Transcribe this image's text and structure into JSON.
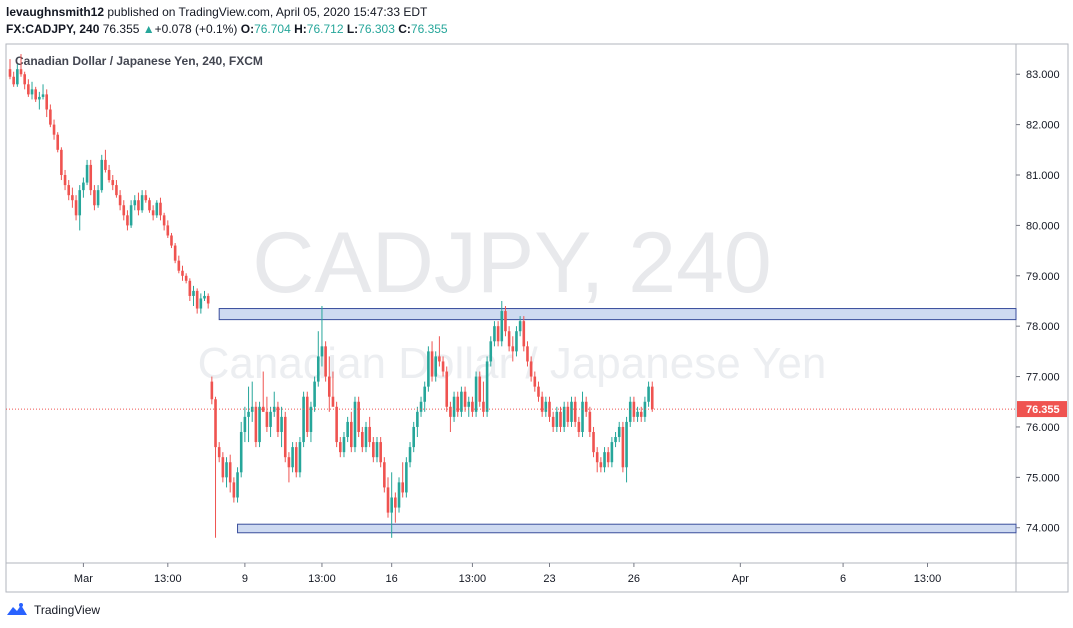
{
  "header": {
    "author": "levaughnsmith12",
    "published_text": "published on TradingView.com, April 05, 2020 15:47:33 EDT",
    "symbol": "FX:CADJPY, 240",
    "last_price": "76.355",
    "change_arrow": "▲",
    "change": "+0.078 (+0.1%)",
    "open_label": "O:",
    "open_value": "76.704",
    "high_label": "H:",
    "high_value": "76.712",
    "low_label": "L:",
    "low_value": "76.303",
    "close_label": "C:",
    "close_value": "76.355"
  },
  "footer": {
    "brand": "TradingView"
  },
  "chart_data": {
    "type": "candlestick",
    "title": "Canadian Dollar / Japanese Yen, 240, FXCM",
    "watermark_line1": "CADJPY, 240",
    "watermark_line2": "Canadian Dollar / Japanese Yen",
    "ylim": [
      73.3,
      83.6
    ],
    "y_ticks": [
      83.0,
      82.0,
      81.0,
      80.0,
      79.0,
      78.0,
      77.0,
      76.0,
      75.0,
      74.0
    ],
    "y_tick_labels": [
      "83.000",
      "82.000",
      "81.000",
      "80.000",
      "79.000",
      "78.000",
      "77.000",
      "76.000",
      "75.000",
      "74.000"
    ],
    "x_ticks": [
      {
        "label": "Mar",
        "bar": 20
      },
      {
        "label": "13:00",
        "bar": 43
      },
      {
        "label": "9",
        "bar": 64
      },
      {
        "label": "13:00",
        "bar": 85
      },
      {
        "label": "16",
        "bar": 104
      },
      {
        "label": "13:00",
        "bar": 126
      },
      {
        "label": "23",
        "bar": 147
      },
      {
        "label": "26",
        "bar": 170
      },
      {
        "label": "Apr",
        "bar": 199
      },
      {
        "label": "6",
        "bar": 227
      },
      {
        "label": "13:00",
        "bar": 250
      }
    ],
    "current_price": 76.355,
    "current_price_label": "76.355",
    "up_color": "#26a69a",
    "down_color": "#ef5350",
    "zones": [
      {
        "from_bar": 57,
        "to_bar": 276,
        "low": 78.13,
        "high": 78.35
      },
      {
        "from_bar": 62,
        "to_bar": 276,
        "low": 73.9,
        "high": 74.07
      }
    ],
    "total_bars": 276,
    "candles": [
      [
        83.1,
        83.3,
        82.9,
        82.95
      ],
      [
        82.95,
        83.05,
        82.75,
        82.8
      ],
      [
        82.8,
        83.2,
        82.75,
        83.1
      ],
      [
        83.1,
        83.4,
        82.95,
        83.0
      ],
      [
        83.0,
        83.05,
        82.7,
        82.8
      ],
      [
        82.8,
        82.9,
        82.55,
        82.6
      ],
      [
        82.6,
        82.85,
        82.5,
        82.7
      ],
      [
        82.7,
        82.75,
        82.45,
        82.5
      ],
      [
        82.5,
        82.65,
        82.3,
        82.55
      ],
      [
        82.55,
        82.8,
        82.5,
        82.6
      ],
      [
        82.6,
        82.7,
        82.15,
        82.3
      ],
      [
        82.3,
        82.4,
        81.95,
        82.0
      ],
      [
        82.0,
        82.1,
        81.7,
        81.8
      ],
      [
        81.8,
        81.85,
        81.45,
        81.5
      ],
      [
        81.5,
        81.55,
        80.9,
        81.0
      ],
      [
        81.0,
        81.1,
        80.7,
        80.8
      ],
      [
        80.8,
        80.9,
        80.5,
        80.6
      ],
      [
        80.6,
        80.75,
        80.35,
        80.5
      ],
      [
        80.5,
        80.6,
        80.1,
        80.2
      ],
      [
        80.2,
        80.8,
        79.9,
        80.7
      ],
      [
        80.7,
        80.95,
        80.55,
        80.85
      ],
      [
        80.85,
        81.3,
        80.8,
        81.2
      ],
      [
        81.2,
        81.3,
        80.6,
        80.7
      ],
      [
        80.7,
        80.8,
        80.3,
        80.4
      ],
      [
        80.4,
        80.8,
        80.35,
        80.7
      ],
      [
        80.7,
        81.4,
        80.65,
        81.3
      ],
      [
        81.3,
        81.5,
        81.05,
        81.1
      ],
      [
        81.1,
        81.2,
        80.85,
        80.9
      ],
      [
        80.9,
        81.0,
        80.7,
        80.8
      ],
      [
        80.8,
        80.9,
        80.55,
        80.6
      ],
      [
        80.6,
        80.7,
        80.3,
        80.4
      ],
      [
        80.4,
        80.5,
        80.1,
        80.2
      ],
      [
        80.2,
        80.3,
        79.9,
        80.0
      ],
      [
        80.0,
        80.5,
        79.95,
        80.4
      ],
      [
        80.4,
        80.6,
        80.3,
        80.5
      ],
      [
        80.5,
        80.65,
        80.2,
        80.3
      ],
      [
        80.3,
        80.7,
        80.25,
        80.6
      ],
      [
        80.6,
        80.7,
        80.45,
        80.5
      ],
      [
        80.5,
        80.55,
        80.25,
        80.3
      ],
      [
        80.3,
        80.4,
        80.1,
        80.2
      ],
      [
        80.2,
        80.5,
        80.15,
        80.45
      ],
      [
        80.45,
        80.55,
        80.1,
        80.2
      ],
      [
        80.2,
        80.25,
        79.9,
        80.0
      ],
      [
        80.0,
        80.1,
        79.75,
        79.8
      ],
      [
        79.8,
        79.85,
        79.55,
        79.6
      ],
      [
        79.6,
        79.65,
        79.25,
        79.3
      ],
      [
        79.3,
        79.4,
        79.05,
        79.1
      ],
      [
        79.1,
        79.2,
        78.9,
        79.0
      ],
      [
        79.0,
        79.05,
        78.85,
        78.9
      ],
      [
        78.9,
        78.95,
        78.5,
        78.6
      ],
      [
        78.6,
        78.8,
        78.4,
        78.7
      ],
      [
        78.7,
        78.75,
        78.25,
        78.35
      ],
      [
        78.35,
        78.65,
        78.25,
        78.55
      ],
      [
        78.55,
        78.7,
        78.5,
        78.6
      ],
      [
        78.6,
        78.65,
        78.35,
        78.45
      ],
      [
        76.9,
        77.0,
        76.45,
        76.55
      ],
      [
        76.55,
        76.6,
        73.8,
        75.6
      ],
      [
        75.6,
        75.7,
        75.3,
        75.4
      ],
      [
        75.4,
        75.5,
        74.9,
        75.0
      ],
      [
        75.0,
        75.4,
        74.8,
        75.3
      ],
      [
        75.3,
        75.45,
        74.7,
        74.9
      ],
      [
        74.9,
        75.0,
        74.5,
        74.6
      ],
      [
        74.6,
        75.2,
        74.5,
        75.1
      ],
      [
        75.1,
        76.1,
        75.0,
        75.9
      ],
      [
        75.9,
        76.4,
        75.7,
        76.2
      ],
      [
        76.2,
        76.8,
        75.7,
        76.3
      ],
      [
        76.3,
        76.9,
        76.1,
        76.4
      ],
      [
        76.4,
        76.5,
        75.6,
        75.7
      ],
      [
        75.7,
        76.5,
        75.6,
        76.4
      ],
      [
        76.4,
        77.1,
        76.3,
        76.3
      ],
      [
        76.3,
        76.6,
        75.9,
        76.0
      ],
      [
        76.0,
        76.4,
        75.8,
        76.3
      ],
      [
        76.3,
        76.7,
        76.2,
        76.4
      ],
      [
        76.4,
        76.5,
        75.8,
        75.9
      ],
      [
        75.9,
        76.4,
        75.6,
        76.2
      ],
      [
        76.2,
        76.3,
        75.3,
        75.4
      ],
      [
        75.4,
        75.5,
        74.9,
        75.2
      ],
      [
        75.2,
        75.7,
        75.1,
        75.6
      ],
      [
        75.6,
        75.7,
        75.0,
        75.1
      ],
      [
        75.1,
        75.8,
        75.0,
        75.7
      ],
      [
        75.7,
        76.7,
        75.6,
        76.6
      ],
      [
        76.6,
        76.7,
        75.8,
        75.9
      ],
      [
        75.9,
        76.5,
        75.7,
        76.4
      ],
      [
        76.4,
        77.0,
        76.3,
        76.9
      ],
      [
        76.9,
        77.9,
        76.8,
        77.4
      ],
      [
        77.4,
        78.4,
        77.2,
        77.6
      ],
      [
        77.6,
        77.7,
        76.9,
        77.0
      ],
      [
        77.0,
        77.4,
        76.3,
        76.6
      ],
      [
        76.6,
        77.1,
        76.5,
        76.4
      ],
      [
        76.4,
        76.5,
        75.6,
        75.7
      ],
      [
        75.7,
        75.8,
        75.4,
        75.5
      ],
      [
        75.5,
        75.9,
        75.4,
        75.8
      ],
      [
        75.8,
        76.2,
        75.7,
        76.1
      ],
      [
        76.1,
        76.3,
        75.5,
        75.6
      ],
      [
        75.6,
        76.6,
        75.5,
        76.5
      ],
      [
        76.5,
        76.6,
        75.8,
        75.9
      ],
      [
        75.9,
        76.0,
        75.5,
        75.6
      ],
      [
        75.6,
        76.1,
        75.5,
        76.0
      ],
      [
        76.0,
        76.2,
        75.6,
        75.7
      ],
      [
        75.7,
        75.8,
        75.3,
        75.4
      ],
      [
        75.4,
        75.8,
        75.3,
        75.7
      ],
      [
        75.7,
        75.8,
        75.2,
        75.3
      ],
      [
        75.3,
        75.4,
        74.7,
        74.8
      ],
      [
        74.8,
        75.0,
        74.2,
        74.3
      ],
      [
        74.3,
        75.1,
        73.8,
        74.6
      ],
      [
        74.6,
        74.7,
        74.1,
        74.4
      ],
      [
        74.4,
        75.0,
        74.3,
        74.9
      ],
      [
        74.9,
        75.3,
        74.6,
        74.7
      ],
      [
        74.7,
        75.4,
        74.6,
        75.3
      ],
      [
        75.3,
        75.7,
        75.2,
        75.6
      ],
      [
        75.6,
        76.1,
        75.5,
        76.0
      ],
      [
        76.0,
        76.4,
        75.8,
        76.3
      ],
      [
        76.3,
        76.6,
        76.2,
        76.5
      ],
      [
        76.5,
        76.9,
        76.3,
        76.8
      ],
      [
        76.8,
        77.6,
        76.7,
        77.5
      ],
      [
        77.5,
        77.7,
        76.9,
        77.0
      ],
      [
        77.0,
        77.5,
        76.9,
        77.4
      ],
      [
        77.4,
        77.8,
        77.2,
        77.3
      ],
      [
        77.3,
        77.4,
        77.0,
        77.1
      ],
      [
        77.1,
        77.2,
        76.3,
        76.4
      ],
      [
        76.4,
        76.5,
        75.9,
        76.2
      ],
      [
        76.2,
        76.7,
        76.1,
        76.6
      ],
      [
        76.6,
        76.7,
        76.2,
        76.3
      ],
      [
        76.3,
        76.8,
        76.2,
        76.7
      ],
      [
        76.7,
        76.8,
        76.3,
        76.4
      ],
      [
        76.4,
        76.6,
        76.2,
        76.5
      ],
      [
        76.5,
        76.6,
        76.2,
        76.3
      ],
      [
        76.3,
        77.1,
        76.2,
        77.0
      ],
      [
        77.0,
        77.1,
        76.4,
        76.5
      ],
      [
        76.5,
        76.9,
        76.2,
        76.3
      ],
      [
        76.3,
        77.4,
        76.2,
        77.3
      ],
      [
        77.3,
        77.8,
        77.2,
        77.7
      ],
      [
        77.7,
        78.1,
        77.6,
        78.0
      ],
      [
        78.0,
        78.1,
        77.6,
        77.7
      ],
      [
        77.7,
        78.5,
        77.6,
        78.3
      ],
      [
        78.3,
        78.4,
        77.8,
        77.9
      ],
      [
        77.9,
        78.0,
        77.5,
        77.6
      ],
      [
        77.6,
        77.8,
        77.3,
        77.5
      ],
      [
        77.5,
        78.0,
        77.4,
        77.9
      ],
      [
        77.9,
        78.2,
        77.8,
        78.1
      ],
      [
        78.1,
        78.2,
        77.5,
        77.6
      ],
      [
        77.6,
        77.7,
        77.2,
        77.3
      ],
      [
        77.3,
        77.4,
        76.9,
        77.0
      ],
      [
        77.0,
        77.1,
        76.7,
        76.8
      ],
      [
        76.8,
        76.9,
        76.5,
        76.6
      ],
      [
        76.6,
        76.7,
        76.2,
        76.3
      ],
      [
        76.3,
        76.6,
        76.2,
        76.5
      ],
      [
        76.5,
        76.6,
        76.1,
        76.2
      ],
      [
        76.2,
        76.3,
        75.9,
        76.0
      ],
      [
        76.0,
        76.4,
        75.9,
        76.3
      ],
      [
        76.3,
        76.4,
        75.9,
        76.0
      ],
      [
        76.0,
        76.5,
        75.9,
        76.4
      ],
      [
        76.4,
        76.5,
        76.0,
        76.1
      ],
      [
        76.1,
        76.6,
        76.0,
        76.5
      ],
      [
        76.5,
        76.6,
        76.0,
        76.1
      ],
      [
        76.1,
        76.2,
        75.8,
        75.9
      ],
      [
        75.9,
        76.7,
        75.8,
        76.5
      ],
      [
        76.5,
        76.6,
        76.2,
        76.3
      ],
      [
        76.3,
        76.4,
        75.8,
        75.9
      ],
      [
        75.9,
        76.0,
        75.4,
        75.5
      ],
      [
        75.5,
        75.6,
        75.1,
        75.3
      ],
      [
        75.3,
        75.4,
        75.1,
        75.2
      ],
      [
        75.2,
        75.6,
        75.1,
        75.5
      ],
      [
        75.5,
        75.6,
        75.2,
        75.3
      ],
      [
        75.3,
        75.8,
        75.2,
        75.7
      ],
      [
        75.7,
        75.9,
        75.6,
        75.8
      ],
      [
        75.8,
        76.1,
        75.7,
        76.0
      ],
      [
        76.0,
        76.1,
        75.1,
        75.2
      ],
      [
        75.2,
        76.2,
        74.9,
        76.1
      ],
      [
        76.1,
        76.6,
        76.0,
        76.5
      ],
      [
        76.5,
        76.6,
        76.1,
        76.2
      ],
      [
        76.2,
        76.4,
        76.1,
        76.3
      ],
      [
        76.3,
        76.4,
        76.1,
        76.2
      ],
      [
        76.2,
        76.6,
        76.1,
        76.5
      ],
      [
        76.5,
        76.9,
        76.4,
        76.8
      ],
      [
        76.8,
        76.9,
        76.3,
        76.355
      ]
    ]
  }
}
